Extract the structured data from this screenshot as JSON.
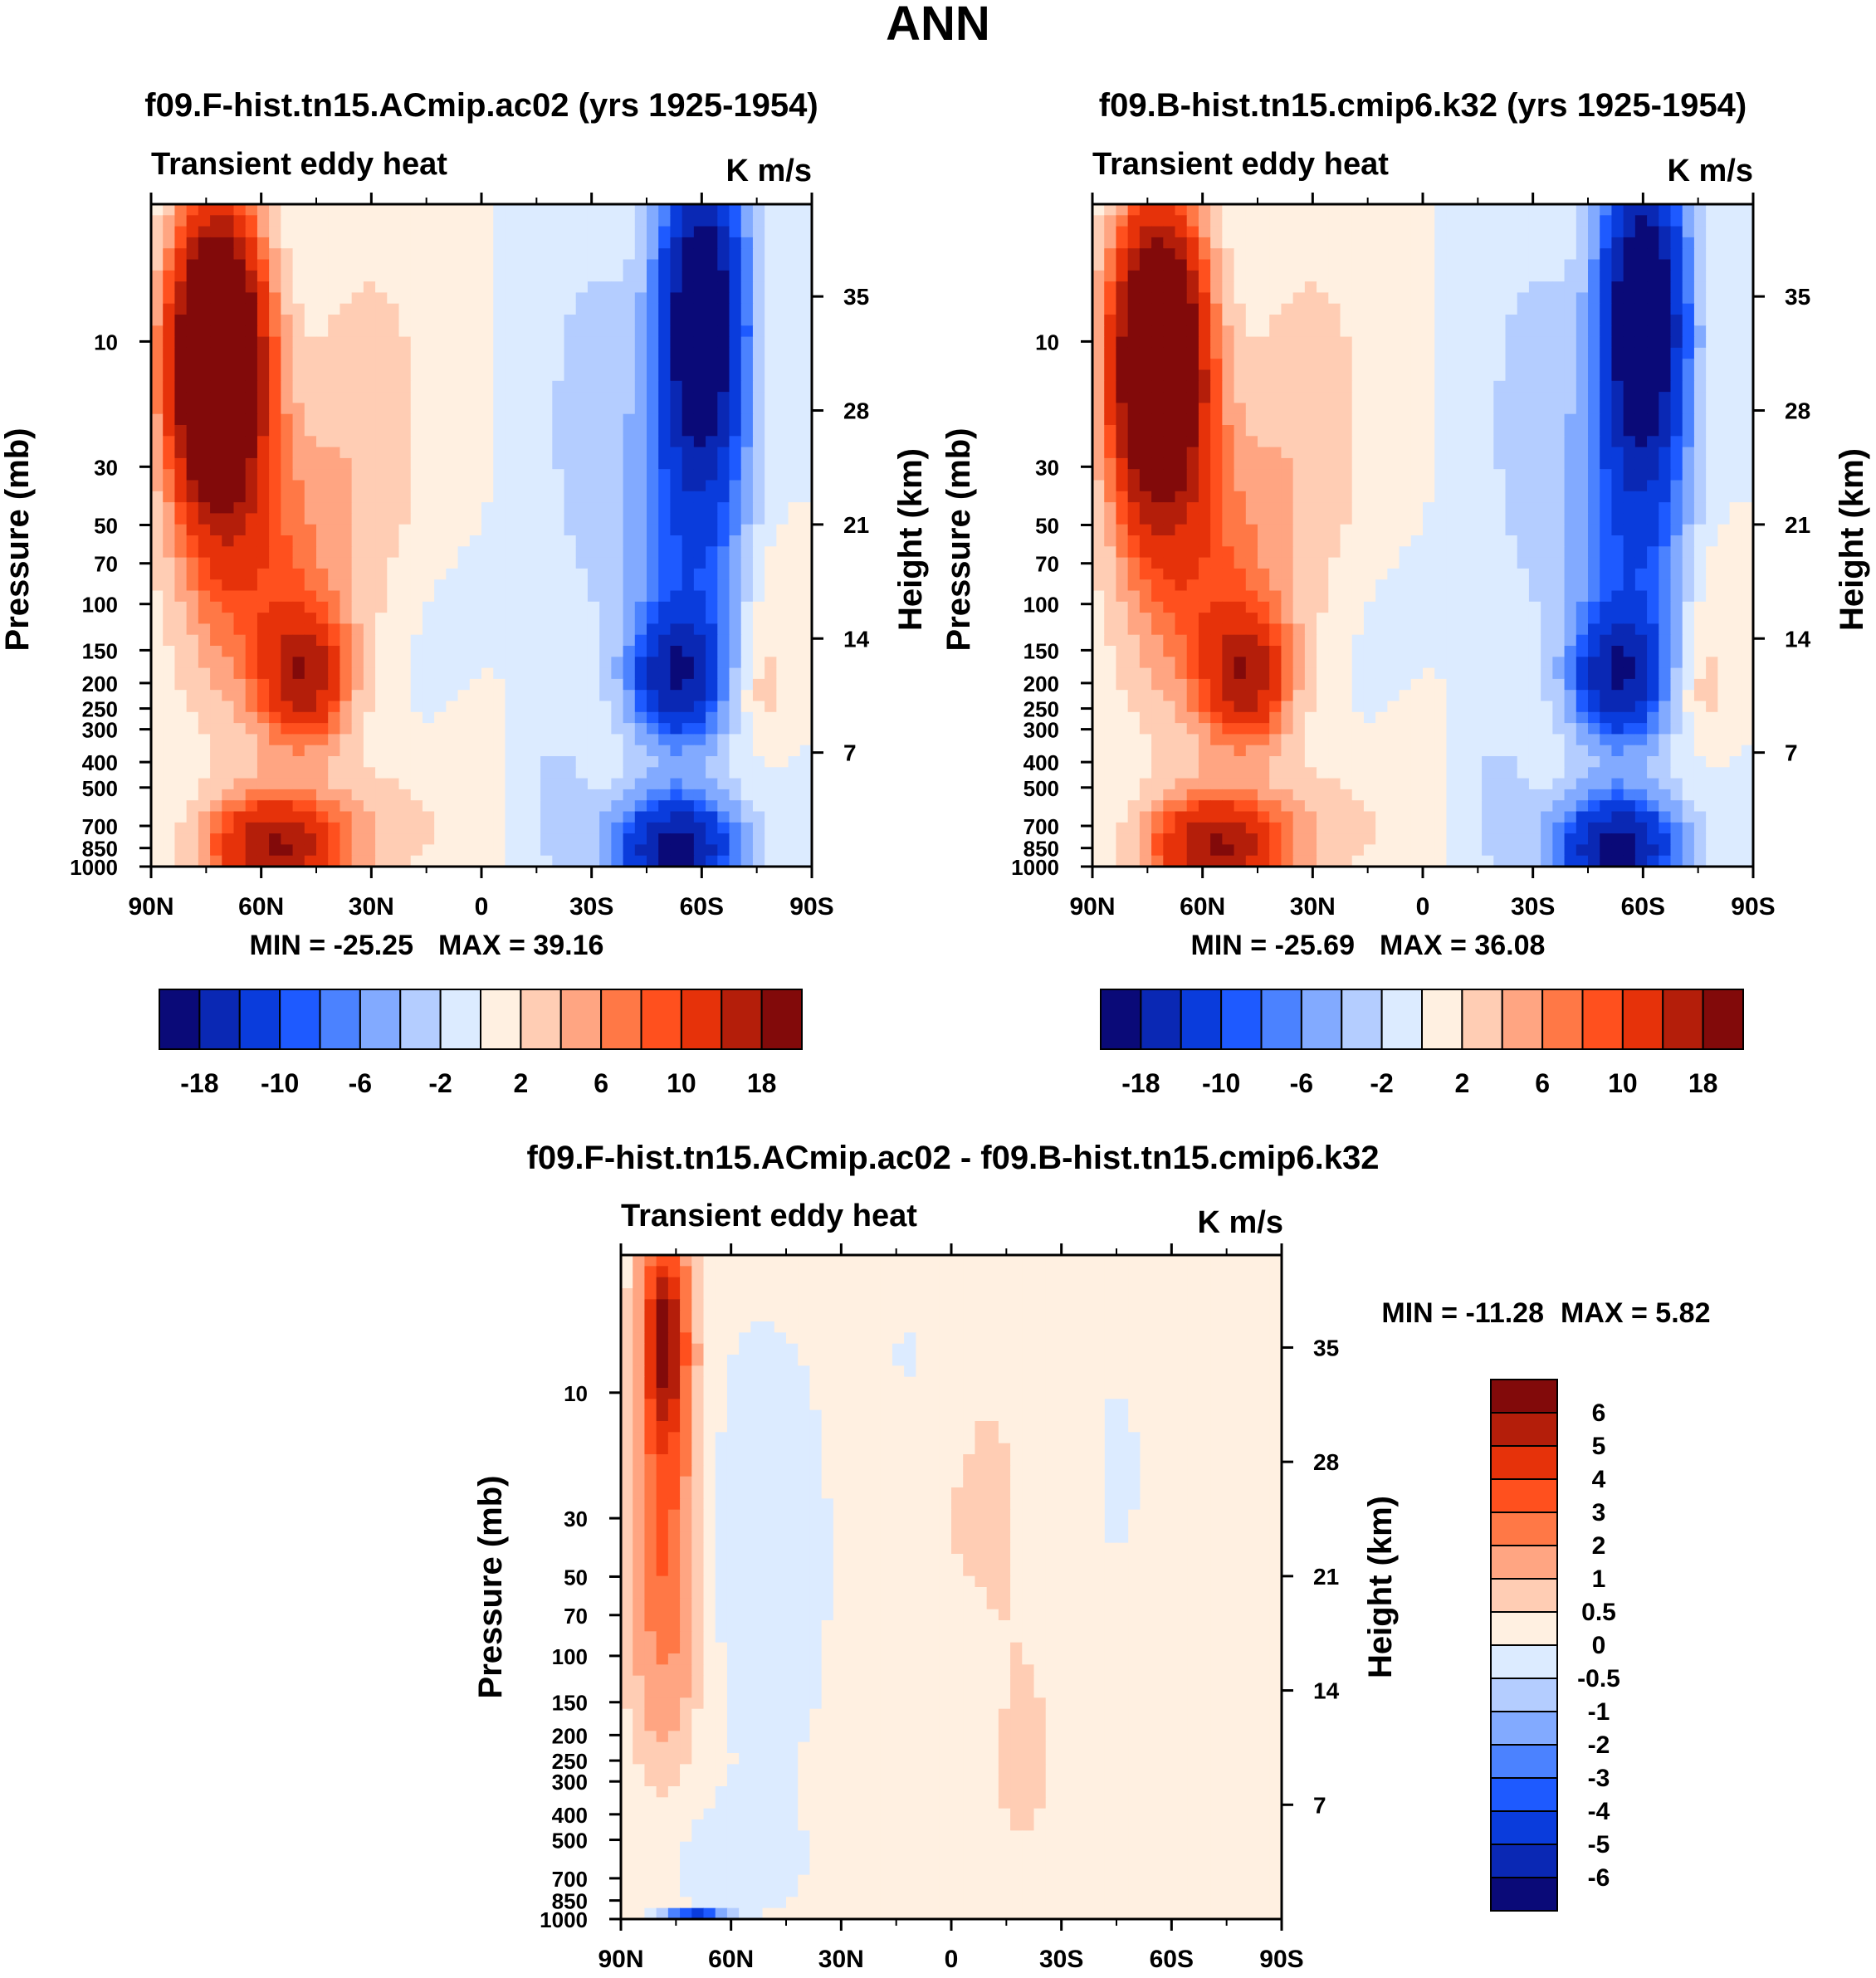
{
  "figure_title": "ANN",
  "palettes": {
    "abs": [
      "#0a0a78",
      "#0a28b4",
      "#0a3cdc",
      "#1e5aff",
      "#4b82ff",
      "#82aaff",
      "#b4cdff",
      "#dcebff",
      "#fff0e1",
      "#ffcdb4",
      "#ffa582",
      "#ff7846",
      "#ff501e",
      "#e6320a",
      "#b41e0a",
      "#820a0a"
    ],
    "diff": [
      "#0a0a78",
      "#0a28b4",
      "#0a3cdc",
      "#1e5aff",
      "#4b82ff",
      "#82aaff",
      "#b4cdff",
      "#dcebff",
      "#fff0e1",
      "#ffcdb4",
      "#ffa582",
      "#ff7846",
      "#ff501e",
      "#e6320a",
      "#b41e0a",
      "#820a0a"
    ]
  },
  "chart_data": [
    {
      "type": "heatmap",
      "id": "panel-a",
      "title": "f09.F-hist.tn15.ACmip.ac02 (yrs 1925-1954)",
      "left_label": "Transient eddy heat",
      "right_label": "K m/s",
      "xlabel": "",
      "ylabel": "Pressure (mb)",
      "ylabel_right": "Height (km)",
      "x_ticks": [
        "90N",
        "60N",
        "30N",
        "0",
        "30S",
        "60S",
        "90S"
      ],
      "x_values": [
        90,
        60,
        30,
        0,
        -30,
        -60,
        -90
      ],
      "y_ticks": [
        10,
        30,
        50,
        70,
        100,
        150,
        200,
        250,
        300,
        400,
        500,
        700,
        850,
        1000
      ],
      "y_range_mb": [
        3,
        1000
      ],
      "height_ticks_km": [
        7,
        14,
        21,
        28,
        35
      ],
      "min_label": "MIN = -25.25",
      "max_label": "MAX =  39.16",
      "min": -25.25,
      "max": 39.16,
      "levels": [
        -18,
        -14,
        -10,
        -8,
        -6,
        -4,
        -2,
        0,
        2,
        4,
        6,
        8,
        10,
        14,
        18
      ],
      "colorbar_labels": [
        "-18",
        "-10",
        "-6",
        "-2",
        "2",
        "6",
        "10",
        "18"
      ],
      "features": [
        {
          "kind": "pos",
          "lat": 70,
          "p": 15,
          "amp": 39
        },
        {
          "kind": "pos",
          "lat": 48,
          "p": 200,
          "amp": 14
        },
        {
          "kind": "pos",
          "lat": 55,
          "p": 850,
          "amp": 18
        },
        {
          "kind": "neg",
          "lat": -60,
          "p": 8,
          "amp": -25
        },
        {
          "kind": "neg",
          "lat": -52,
          "p": 200,
          "amp": -16
        },
        {
          "kind": "neg",
          "lat": -52,
          "p": 850,
          "amp": -20
        },
        {
          "kind": "pos",
          "lat": -75,
          "p": 200,
          "amp": 3
        }
      ]
    },
    {
      "type": "heatmap",
      "id": "panel-b",
      "title": "f09.B-hist.tn15.cmip6.k32 (yrs 1925-1954)",
      "left_label": "Transient eddy heat",
      "right_label": "K m/s",
      "xlabel": "",
      "ylabel": "Pressure (mb)",
      "ylabel_right": "Height (km)",
      "x_ticks": [
        "90N",
        "60N",
        "30N",
        "0",
        "30S",
        "60S",
        "90S"
      ],
      "x_values": [
        90,
        60,
        30,
        0,
        -30,
        -60,
        -90
      ],
      "y_ticks": [
        10,
        30,
        50,
        70,
        100,
        150,
        200,
        250,
        300,
        400,
        500,
        700,
        850,
        1000
      ],
      "y_range_mb": [
        3,
        1000
      ],
      "height_ticks_km": [
        7,
        14,
        21,
        28,
        35
      ],
      "min_label": "MIN = -25.69",
      "max_label": "MAX =  36.08",
      "min": -25.69,
      "max": 36.08,
      "levels": [
        -18,
        -14,
        -10,
        -8,
        -6,
        -4,
        -2,
        0,
        2,
        4,
        6,
        8,
        10,
        14,
        18
      ],
      "colorbar_labels": [
        "-18",
        "-10",
        "-6",
        "-2",
        "2",
        "6",
        "10",
        "18"
      ],
      "features": [
        {
          "kind": "pos",
          "lat": 70,
          "p": 15,
          "amp": 36
        },
        {
          "kind": "pos",
          "lat": 48,
          "p": 200,
          "amp": 14
        },
        {
          "kind": "pos",
          "lat": 55,
          "p": 850,
          "amp": 18
        },
        {
          "kind": "neg",
          "lat": -60,
          "p": 8,
          "amp": -25.7
        },
        {
          "kind": "neg",
          "lat": -52,
          "p": 200,
          "amp": -16
        },
        {
          "kind": "neg",
          "lat": -52,
          "p": 850,
          "amp": -20
        },
        {
          "kind": "pos",
          "lat": -75,
          "p": 200,
          "amp": 3
        }
      ]
    },
    {
      "type": "heatmap",
      "id": "panel-c",
      "title": "f09.F-hist.tn15.ACmip.ac02 - f09.B-hist.tn15.cmip6.k32",
      "left_label": "Transient eddy heat",
      "right_label": "K m/s",
      "xlabel": "",
      "ylabel": "Pressure (mb)",
      "ylabel_right": "Height (km)",
      "x_ticks": [
        "90N",
        "60N",
        "30N",
        "0",
        "30S",
        "60S",
        "90S"
      ],
      "x_values": [
        90,
        60,
        30,
        0,
        -30,
        -60,
        -90
      ],
      "y_ticks": [
        10,
        30,
        50,
        70,
        100,
        150,
        200,
        250,
        300,
        400,
        500,
        700,
        850,
        1000
      ],
      "y_range_mb": [
        3,
        1000
      ],
      "height_ticks_km": [
        7,
        14,
        21,
        28,
        35
      ],
      "min_label": "MIN = -11.28",
      "max_label": "MAX =    5.82",
      "min": -11.28,
      "max": 5.82,
      "levels": [
        -6,
        -5,
        -4,
        -3,
        -2,
        -1,
        -0.5,
        0,
        0.5,
        1,
        2,
        3,
        4,
        5,
        6
      ],
      "colorbar_labels": [
        "6",
        "5",
        "4",
        "3",
        "2",
        "1",
        "0.5",
        "0",
        "-0.5",
        "-1",
        "-2",
        "-3",
        "-4",
        "-5",
        "-6"
      ],
      "features": [
        {
          "kind": "pos",
          "lat": 77,
          "p": 7,
          "amp": 5.8
        },
        {
          "kind": "neg",
          "lat": 70,
          "p": 1000,
          "amp": -11.28
        }
      ]
    }
  ]
}
